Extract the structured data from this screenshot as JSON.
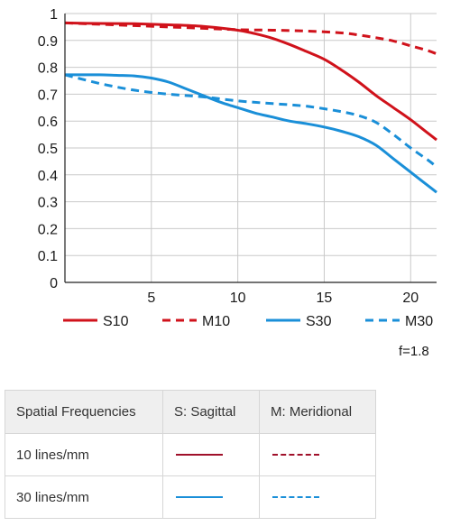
{
  "chart_data": {
    "type": "line",
    "title": "",
    "xlabel": "",
    "ylabel": "",
    "xlim": [
      0,
      21.5
    ],
    "ylim": [
      0,
      1
    ],
    "x_ticks": [
      5,
      10,
      15,
      20
    ],
    "y_ticks": [
      0,
      0.1,
      0.2,
      0.3,
      0.4,
      0.5,
      0.6,
      0.7,
      0.8,
      0.9,
      1
    ],
    "y_tick_labels": [
      "0",
      "0.1",
      "0.2",
      "0.3",
      "0.4",
      "0.5",
      "0.6",
      "0.7",
      "0.8",
      "0.9",
      "1"
    ],
    "grid": true,
    "legend_position": "bottom",
    "series": [
      {
        "name": "S10",
        "color": "#d0121b",
        "style": "solid",
        "x": [
          0,
          2,
          4,
          6,
          8,
          10,
          11,
          12,
          13,
          14,
          15,
          16,
          17,
          18,
          19,
          20,
          21,
          21.5
        ],
        "y": [
          0.965,
          0.963,
          0.962,
          0.958,
          0.952,
          0.938,
          0.925,
          0.908,
          0.885,
          0.858,
          0.83,
          0.79,
          0.745,
          0.695,
          0.65,
          0.605,
          0.555,
          0.53
        ]
      },
      {
        "name": "M10",
        "color": "#d0121b",
        "style": "dashed",
        "x": [
          0,
          4,
          8,
          10,
          12,
          14,
          16,
          17,
          18,
          19,
          20,
          21,
          21.5
        ],
        "y": [
          0.965,
          0.955,
          0.945,
          0.94,
          0.938,
          0.935,
          0.928,
          0.92,
          0.91,
          0.898,
          0.88,
          0.862,
          0.85
        ]
      },
      {
        "name": "S30",
        "color": "#1a8fd8",
        "style": "solid",
        "x": [
          0,
          1,
          2,
          3,
          4,
          5,
          6,
          7,
          8,
          9,
          10,
          11,
          12,
          13,
          14,
          15,
          16,
          17,
          18,
          19,
          20,
          21,
          21.5
        ],
        "y": [
          0.772,
          0.772,
          0.772,
          0.77,
          0.768,
          0.76,
          0.745,
          0.72,
          0.695,
          0.67,
          0.65,
          0.63,
          0.615,
          0.6,
          0.59,
          0.578,
          0.562,
          0.542,
          0.51,
          0.46,
          0.41,
          0.36,
          0.335
        ]
      },
      {
        "name": "M30",
        "color": "#1a8fd8",
        "style": "dashed",
        "x": [
          0,
          2,
          4,
          6,
          8,
          10,
          12,
          14,
          16,
          17,
          18,
          19,
          20,
          21,
          21.5
        ],
        "y": [
          0.772,
          0.74,
          0.715,
          0.7,
          0.69,
          0.675,
          0.665,
          0.655,
          0.635,
          0.62,
          0.595,
          0.55,
          0.5,
          0.455,
          0.43
        ]
      }
    ]
  },
  "fnumber": "f=1.8",
  "legend_table": {
    "headers": [
      "Spatial Frequencies",
      "S: Sagittal",
      "M: Meridional"
    ],
    "rows": [
      {
        "label": "10 lines/mm",
        "color": "#a0102a",
        "sagittal_style": "solid",
        "meridional_style": "dashed"
      },
      {
        "label": "30 lines/mm",
        "color": "#1a8fd8",
        "sagittal_style": "solid",
        "meridional_style": "dashed"
      }
    ]
  }
}
